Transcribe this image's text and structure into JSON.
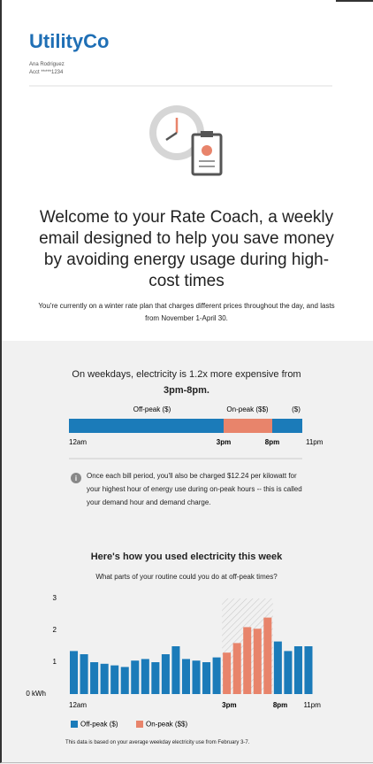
{
  "header": {
    "brand": "UtilityCo",
    "name": "Ana Rodriguez",
    "account": "Acct *****1234"
  },
  "intro": {
    "heading": "Welcome to your Rate Coach, a weekly email designed to help you save money by avoiding energy usage during high-cost times",
    "text": "You're currently on a winter rate plan that charges different prices throughout the day, and lasts from November 1-April 30."
  },
  "rate": {
    "headline": "On weekdays, electricity is 1.2x more expensive from",
    "headline_bold": "3pm-8pm.",
    "segments": [
      "Off-peak ($)",
      "On-peak ($$)",
      "($)"
    ],
    "times": [
      "12am",
      "3pm",
      "8pm",
      "11pm"
    ],
    "note": "Once each bill period, you'll also be charged $12.24 per kilowatt for your highest hour of energy use during on-peak hours -- this is called your demand hour and demand charge."
  },
  "chart_data": {
    "type": "bar",
    "title": "Here's how you used electricity this week",
    "subtitle": "What parts of your routine could you do at off-peak times?",
    "categories": [
      "12am",
      null,
      null,
      null,
      null,
      null,
      null,
      null,
      null,
      null,
      null,
      null,
      null,
      null,
      null,
      "3pm",
      null,
      null,
      null,
      null,
      "8pm",
      null,
      null,
      "11pm"
    ],
    "series": [
      {
        "name": "Off-peak ($)",
        "color": "#1b7bb9",
        "values": [
          1.35,
          1.25,
          1.0,
          0.95,
          0.9,
          0.85,
          1.05,
          1.1,
          1.0,
          1.25,
          1.5,
          1.1,
          1.05,
          1.0,
          1.15,
          null,
          null,
          null,
          null,
          null,
          1.65,
          1.35,
          1.5,
          1.5
        ]
      },
      {
        "name": "On-peak ($$)",
        "color": "#e8846b",
        "values": [
          null,
          null,
          null,
          null,
          null,
          null,
          null,
          null,
          null,
          null,
          null,
          null,
          null,
          null,
          null,
          1.3,
          1.6,
          2.1,
          2.05,
          2.4,
          null,
          null,
          null,
          null
        ]
      }
    ],
    "ylim": [
      0,
      3
    ],
    "yticks": [
      {
        "value": 0,
        "label": "0 kWh"
      },
      1,
      2,
      3
    ],
    "grid": false,
    "footnote": "This data is based on your average weekday electricity use from February 3-7."
  }
}
